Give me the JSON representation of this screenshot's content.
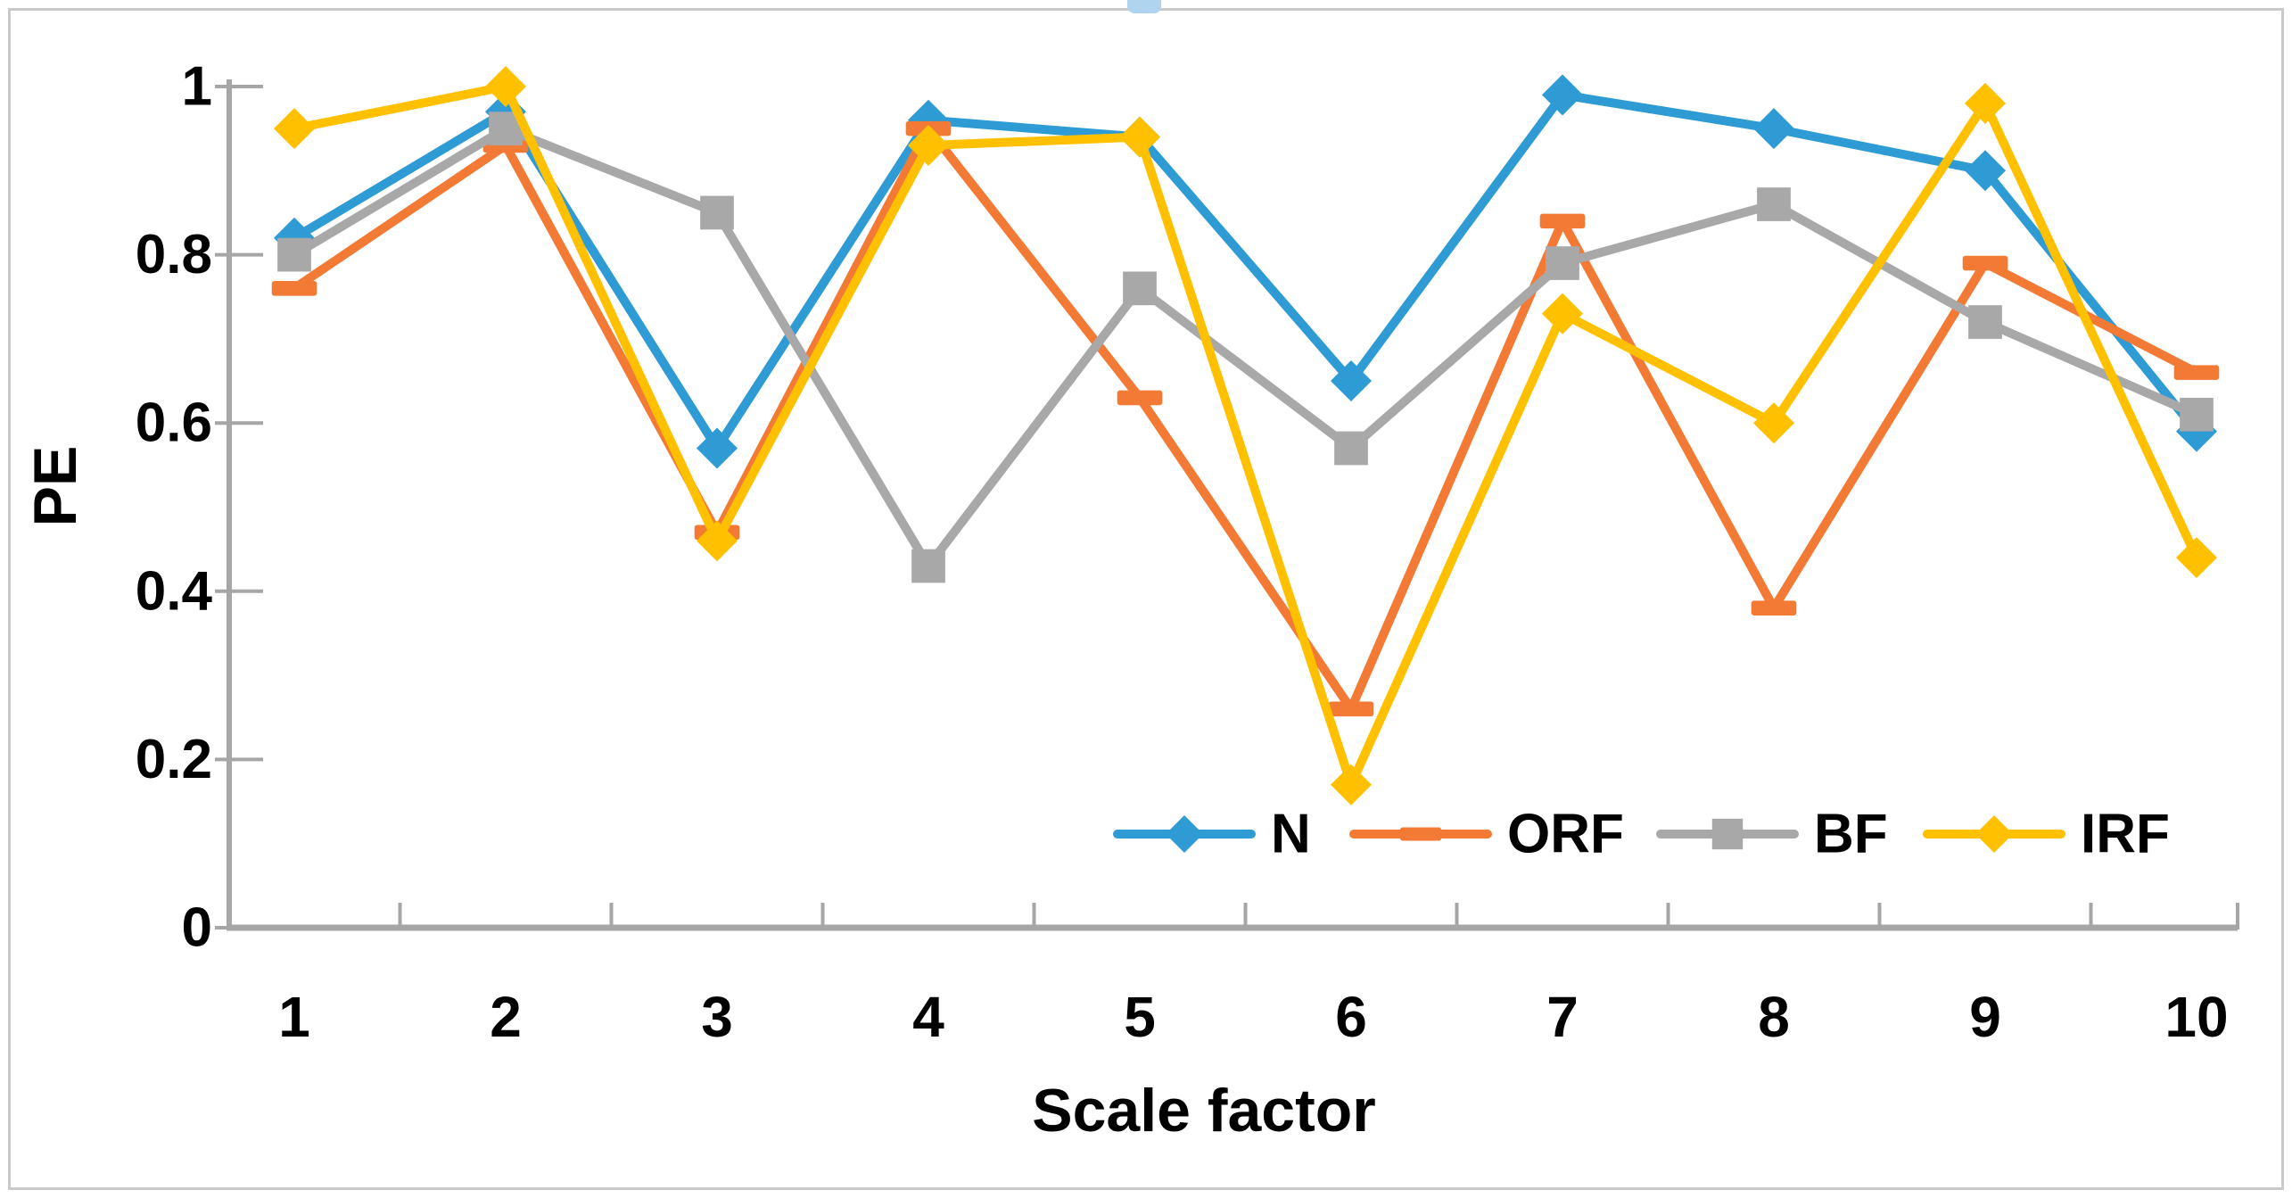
{
  "figure": {
    "background": "#ffffff",
    "frame_border_color": "#c9c9c9"
  },
  "chart_data": {
    "type": "line",
    "title": "",
    "xlabel": "Scale factor",
    "ylabel": "PE",
    "categories": [
      1,
      2,
      3,
      4,
      5,
      6,
      7,
      8,
      9,
      10
    ],
    "x_tick_labels": [
      "1",
      "2",
      "3",
      "4",
      "5",
      "6",
      "7",
      "8",
      "9",
      "10"
    ],
    "y_tick_values": [
      0,
      0.2,
      0.4,
      0.6,
      0.8,
      1
    ],
    "y_tick_labels": [
      "0",
      "0.2",
      "0.4",
      "0.6",
      "0.8",
      "1"
    ],
    "ylim": [
      0,
      1
    ],
    "grid": false,
    "legend_position": "inside-bottom-right",
    "legend": [
      "N",
      "ORF",
      "BF",
      "IRF"
    ],
    "axis_color": "#a6a6a6",
    "text_color": "#000000",
    "series": [
      {
        "name": "N",
        "color": "#2e9bd5",
        "marker": "diamond",
        "values": [
          0.82,
          0.97,
          0.57,
          0.96,
          0.94,
          0.65,
          0.99,
          0.95,
          0.9,
          0.59
        ]
      },
      {
        "name": "ORF",
        "color": "#f27a35",
        "marker": "dash",
        "values": [
          0.76,
          0.93,
          0.47,
          0.95,
          0.63,
          0.26,
          0.84,
          0.38,
          0.79,
          0.66
        ]
      },
      {
        "name": "BF",
        "color": "#a8a8a8",
        "marker": "square",
        "values": [
          0.8,
          0.95,
          0.85,
          0.43,
          0.76,
          0.57,
          0.79,
          0.86,
          0.72,
          0.61
        ]
      },
      {
        "name": "IRF",
        "color": "#ffc000",
        "marker": "diamond",
        "values": [
          0.95,
          1.0,
          0.46,
          0.93,
          0.94,
          0.17,
          0.73,
          0.6,
          0.98,
          0.44
        ]
      }
    ]
  }
}
